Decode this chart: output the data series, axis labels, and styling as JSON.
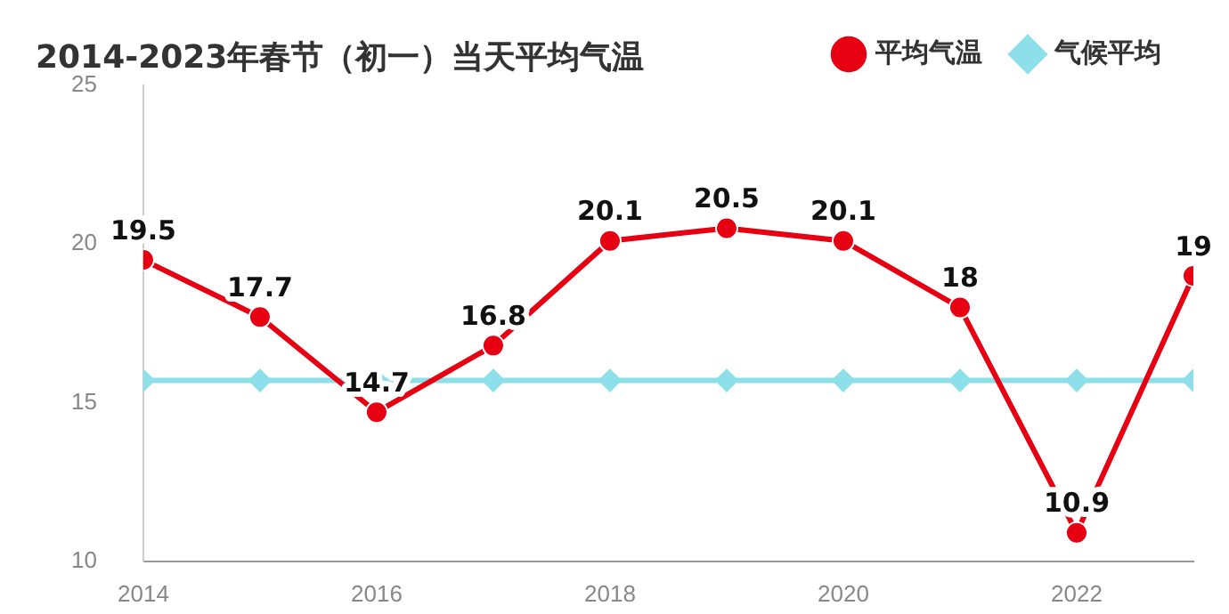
{
  "chart_data": {
    "type": "line",
    "title": "2014-2023年春节（初一）当天平均气温",
    "x": [
      2014,
      2015,
      2016,
      2017,
      2018,
      2019,
      2020,
      2021,
      2022,
      2023
    ],
    "xlim": [
      2014,
      2023
    ],
    "xticks": [
      2014,
      2016,
      2018,
      2020,
      2022
    ],
    "ylim": [
      10,
      25
    ],
    "yticks": [
      10,
      15,
      20,
      25
    ],
    "grid": false,
    "legend": "top right",
    "series": [
      {
        "name": "平均气温",
        "color": "#e60012",
        "marker": "circle",
        "values": [
          19.5,
          17.7,
          14.7,
          16.8,
          20.1,
          20.5,
          20.1,
          18,
          10.9,
          19
        ],
        "value_labels": [
          "19.5",
          "17.7",
          "14.7",
          "16.8",
          "20.1",
          "20.5",
          "20.1",
          "18",
          "10.9",
          "19"
        ]
      },
      {
        "name": "气候平均",
        "color": "#8ddfea",
        "marker": "diamond",
        "values": [
          15.7,
          15.7,
          15.7,
          15.7,
          15.7,
          15.7,
          15.7,
          15.7,
          15.7,
          15.7
        ]
      }
    ]
  }
}
